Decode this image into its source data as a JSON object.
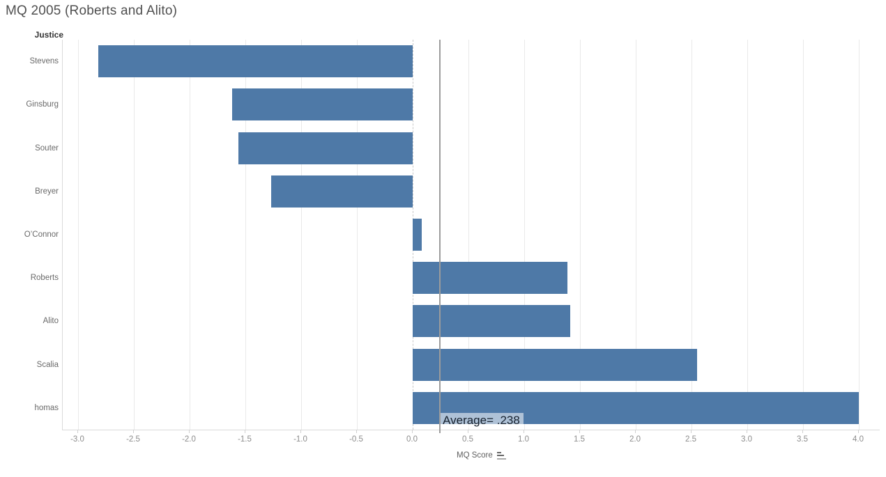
{
  "title": "MQ 2005 (Roberts and Alito)",
  "colors": {
    "bar": "#4e79a7",
    "gridline": "#e9e9e9",
    "zero_line": "#c6c6c6",
    "reference_line": "#9c9c9c",
    "axis_line": "#d9d9d9",
    "tick_label": "#8c8c8c",
    "row_label": "#696969",
    "title_text": "#4f4f4f",
    "annotation_text": "#16212e"
  },
  "chart_data": {
    "type": "bar",
    "orientation": "horizontal",
    "title": "MQ 2005 (Roberts and Alito)",
    "row_axis_label": "Justice",
    "xlabel": "MQ Score",
    "categories": [
      "Stevens",
      "Ginsburg",
      "Souter",
      "Breyer",
      "O’Connor",
      "Roberts",
      "Alito",
      "Scalia",
      "homas"
    ],
    "values": [
      -2.82,
      -1.62,
      -1.56,
      -1.27,
      0.08,
      1.39,
      1.41,
      2.55,
      4.0
    ],
    "xticks": [
      "-3.0",
      "-2.5",
      "-2.0",
      "-1.5",
      "-1.0",
      "-0.5",
      "0.0",
      "0.5",
      "1.0",
      "1.5",
      "2.0",
      "2.5",
      "3.0",
      "3.5",
      "4.0"
    ],
    "xlim": [
      -3.14,
      4.19
    ],
    "grid": true,
    "legend": "none",
    "bar_color": "#4e79a7",
    "reference_line": {
      "value": 0.238,
      "label": "Average= .238"
    },
    "sort_indicator": "descending"
  }
}
